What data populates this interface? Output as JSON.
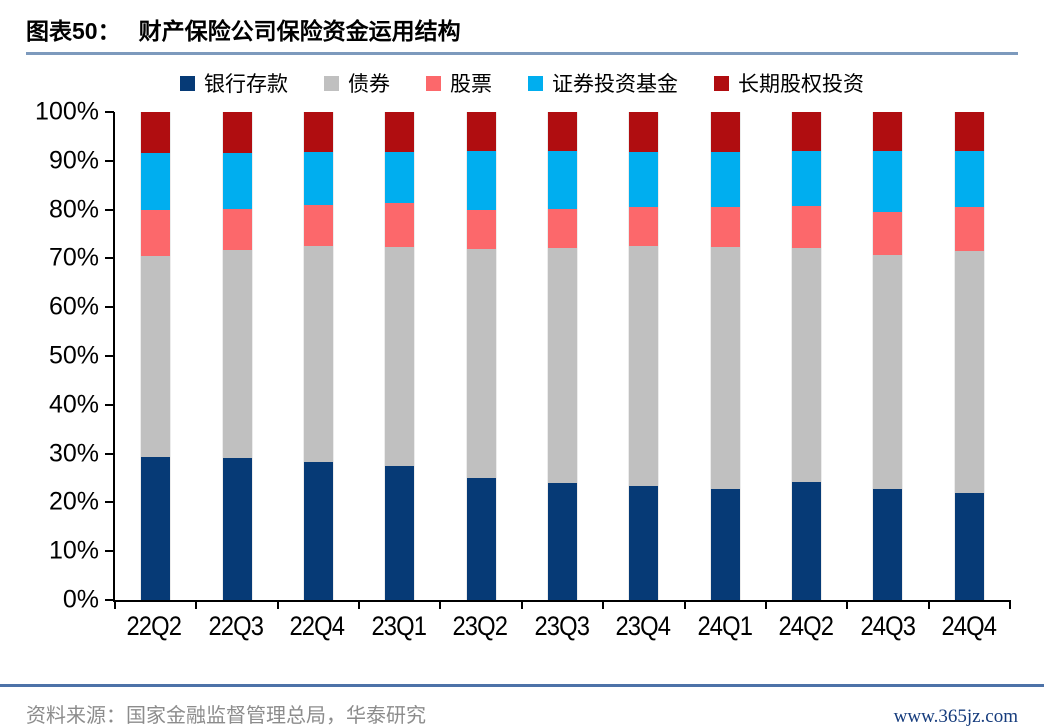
{
  "header": {
    "label": "图表50：",
    "title": "财产保险公司保险资金运用结构"
  },
  "chart_data": {
    "type": "bar",
    "stacked": true,
    "percent": true,
    "title": "财产保险公司保险资金运用结构",
    "categories": [
      "22Q2",
      "22Q3",
      "22Q4",
      "23Q1",
      "23Q2",
      "23Q3",
      "23Q4",
      "24Q1",
      "24Q2",
      "24Q3",
      "24Q4"
    ],
    "series": [
      {
        "name": "银行存款",
        "color": "#063a76",
        "values": [
          29.3,
          29.0,
          28.2,
          27.4,
          25.0,
          24.0,
          23.3,
          22.8,
          24.1,
          22.7,
          22.0
        ]
      },
      {
        "name": "债券",
        "color": "#c0c0c0",
        "values": [
          41.1,
          42.8,
          44.3,
          45.0,
          46.9,
          48.1,
          49.2,
          49.6,
          48.1,
          47.9,
          49.5
        ]
      },
      {
        "name": "股票",
        "color": "#fc686b",
        "values": [
          9.5,
          8.4,
          8.5,
          9.0,
          8.0,
          8.1,
          8.0,
          8.2,
          8.5,
          8.9,
          9.0
        ]
      },
      {
        "name": "证券投资基金",
        "color": "#00aeef",
        "values": [
          11.8,
          11.5,
          10.8,
          10.5,
          12.1,
          11.8,
          11.4,
          11.2,
          11.4,
          12.5,
          11.6
        ]
      },
      {
        "name": "长期股权投资",
        "color": "#b00d10",
        "values": [
          8.3,
          8.3,
          8.2,
          8.1,
          8.0,
          8.0,
          8.1,
          8.2,
          7.9,
          8.0,
          7.9
        ]
      }
    ],
    "ylim": [
      0,
      100
    ],
    "yticks": [
      "0%",
      "10%",
      "20%",
      "30%",
      "40%",
      "50%",
      "60%",
      "70%",
      "80%",
      "90%",
      "100%"
    ],
    "grid": false,
    "legend_position": "top"
  },
  "footer": {
    "source": "资料来源：国家金融监督管理总局，华泰研究",
    "watermark": "www.365jz.com"
  }
}
